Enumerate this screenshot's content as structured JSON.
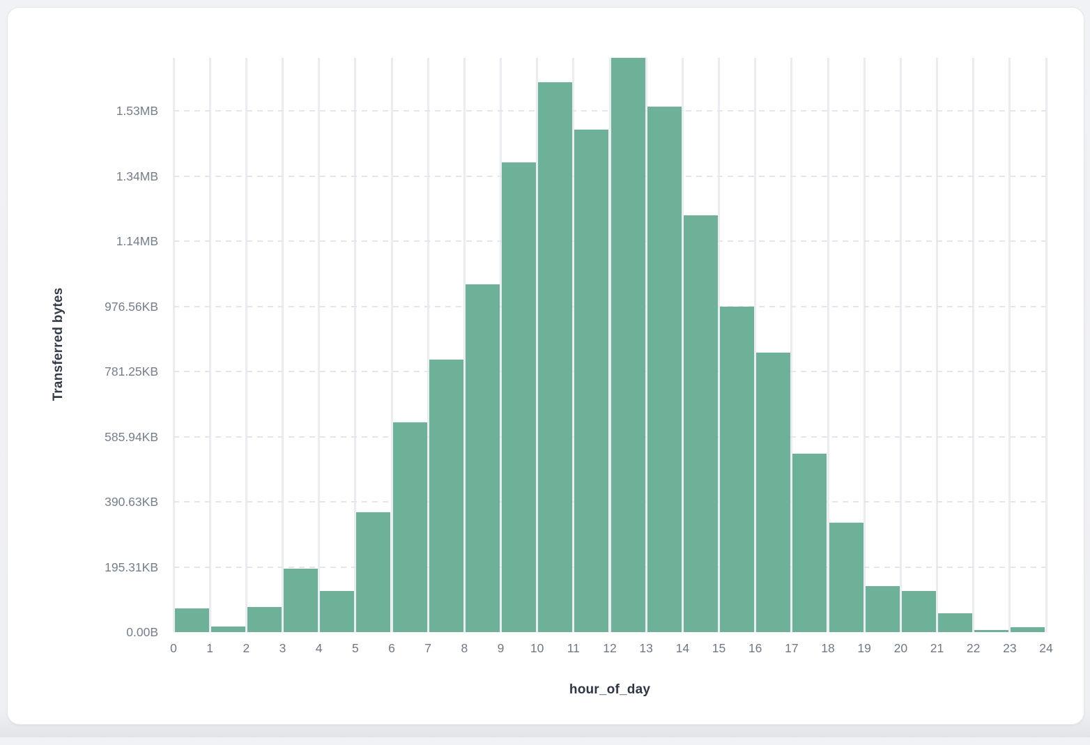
{
  "page": {
    "background": "#eff0f3",
    "card_background": "#ffffff"
  },
  "chart_data": {
    "type": "bar",
    "title": "",
    "xlabel": "hour_of_day",
    "ylabel": "Transferred bytes",
    "bar_color": "#6cb198",
    "categories": [
      0,
      1,
      2,
      3,
      4,
      5,
      6,
      7,
      8,
      9,
      10,
      11,
      12,
      13,
      14,
      15,
      16,
      17,
      18,
      19,
      20,
      21,
      22,
      23
    ],
    "values_kb": [
      72,
      16,
      76,
      191,
      124,
      360,
      630,
      818,
      1043,
      1409,
      1649,
      1507,
      1722,
      1576,
      1250,
      975,
      837,
      534,
      329,
      139,
      124,
      57,
      6,
      14
    ],
    "x_tick_labels": [
      "0",
      "1",
      "2",
      "3",
      "4",
      "5",
      "6",
      "7",
      "8",
      "9",
      "10",
      "11",
      "12",
      "13",
      "14",
      "15",
      "16",
      "17",
      "18",
      "19",
      "20",
      "21",
      "22",
      "23",
      "24"
    ],
    "y_ticks": [
      {
        "label": "0.00B",
        "kb": 0
      },
      {
        "label": "195.31KB",
        "kb": 195.31
      },
      {
        "label": "390.63KB",
        "kb": 390.63
      },
      {
        "label": "585.94KB",
        "kb": 585.94
      },
      {
        "label": "781.25KB",
        "kb": 781.25
      },
      {
        "label": "976.56KB",
        "kb": 976.56
      },
      {
        "label": "1.14MB",
        "kb": 1171.88
      },
      {
        "label": "1.34MB",
        "kb": 1367.19
      },
      {
        "label": "1.53MB",
        "kb": 1562.5
      }
    ],
    "ylim_kb": [
      0,
      1722
    ],
    "grid": {
      "vertical_line_color": "#eaecf2",
      "horizontal_dash_color": "#e4e6ec",
      "legend": "none"
    }
  }
}
